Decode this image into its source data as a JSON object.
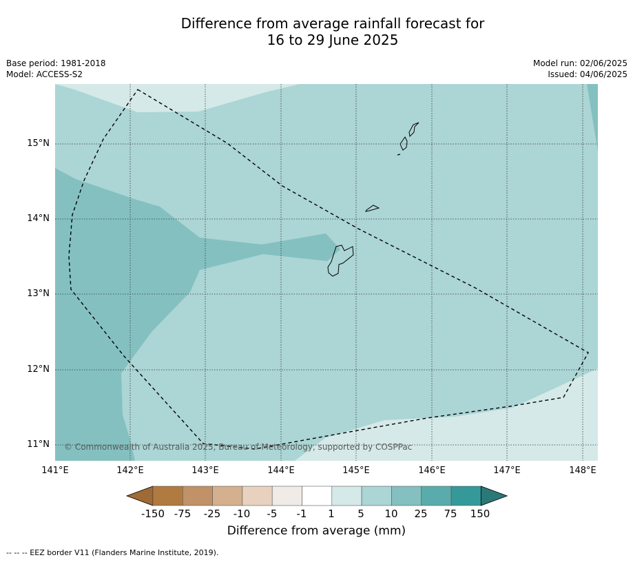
{
  "title_line1": "Difference from average rainfall forecast for",
  "title_line2": "16 to 29 June 2025",
  "meta": {
    "base_period": "Base period: 1981-2018",
    "model": "Model: ACCESS-S2",
    "model_run": "Model run: 02/06/2025",
    "issued": "Issued: 04/06/2025"
  },
  "map": {
    "lon_ticks": [
      "141°E",
      "142°E",
      "143°E",
      "144°E",
      "145°E",
      "146°E",
      "147°E",
      "148°E"
    ],
    "lat_ticks": [
      "15°N",
      "14°N",
      "13°N",
      "12°N",
      "11°N"
    ],
    "copyright": "© Commonwealth of Australia 2025, Bureau of Meteorology, supported by COSPPac",
    "colors": {
      "band_1_5": "#d5e9e8",
      "band_5_10": "#acd5d5",
      "band_10_25": "#84c0c0",
      "coast": "#000000",
      "eez": "#000000"
    }
  },
  "colorbar": {
    "labels": [
      "-150",
      "-75",
      "-25",
      "-10",
      "-5",
      "-1",
      "1",
      "5",
      "10",
      "25",
      "75",
      "150"
    ],
    "colors": [
      "#a06a35",
      "#b07a40",
      "#c19268",
      "#d4b08f",
      "#e8d2bf",
      "#f0ebe7",
      "#ffffff",
      "#d5e9e8",
      "#acd5d5",
      "#84c0c0",
      "#5aacac",
      "#35999a",
      "#2b7878"
    ],
    "title": "Difference from average (mm)"
  },
  "footer": "--  --  -- EEZ border V11 (Flanders Marine Institute, 2019)."
}
